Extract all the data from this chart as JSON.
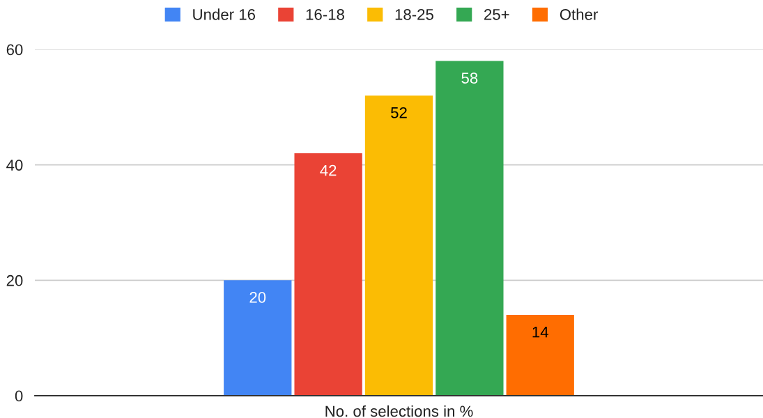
{
  "chart_data": {
    "type": "bar",
    "categories": [
      "No. of selections in %"
    ],
    "series": [
      {
        "name": "Under 16",
        "color": "#4285f4",
        "values": [
          20
        ]
      },
      {
        "name": "16-18",
        "color": "#ea4335",
        "values": [
          42
        ]
      },
      {
        "name": "18-25",
        "color": "#fbbc04",
        "values": [
          52
        ]
      },
      {
        "name": "25+",
        "color": "#34a853",
        "values": [
          58
        ]
      },
      {
        "name": "Other",
        "color": "#ff6d01",
        "values": [
          14
        ]
      }
    ],
    "ylim": [
      0,
      60
    ],
    "yticks": [
      0,
      20,
      40,
      60
    ],
    "grid": "y",
    "legend": "top",
    "data_labels": true
  }
}
